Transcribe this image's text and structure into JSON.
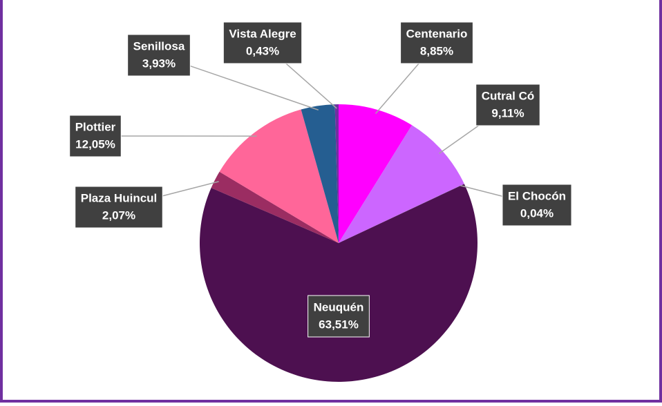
{
  "chart_data": {
    "type": "pie",
    "categories": [
      "Centenario",
      "Cutral Có",
      "El Chocón",
      "Neuquén",
      "Plaza Huincul",
      "Plottier",
      "Senillosa",
      "Vista Alegre"
    ],
    "values": [
      8.85,
      9.11,
      0.04,
      63.51,
      2.07,
      12.05,
      3.93,
      0.43
    ],
    "value_labels": [
      "8,85%",
      "9,11%",
      "0,04%",
      "63,51%",
      "2,07%",
      "12,05%",
      "3,93%",
      "0,43%"
    ],
    "colors": [
      "#ff00ff",
      "#cc66ff",
      "#9966cc",
      "#4d1050",
      "#9b2d62",
      "#ff6699",
      "#255e91",
      "#7030a0"
    ]
  }
}
